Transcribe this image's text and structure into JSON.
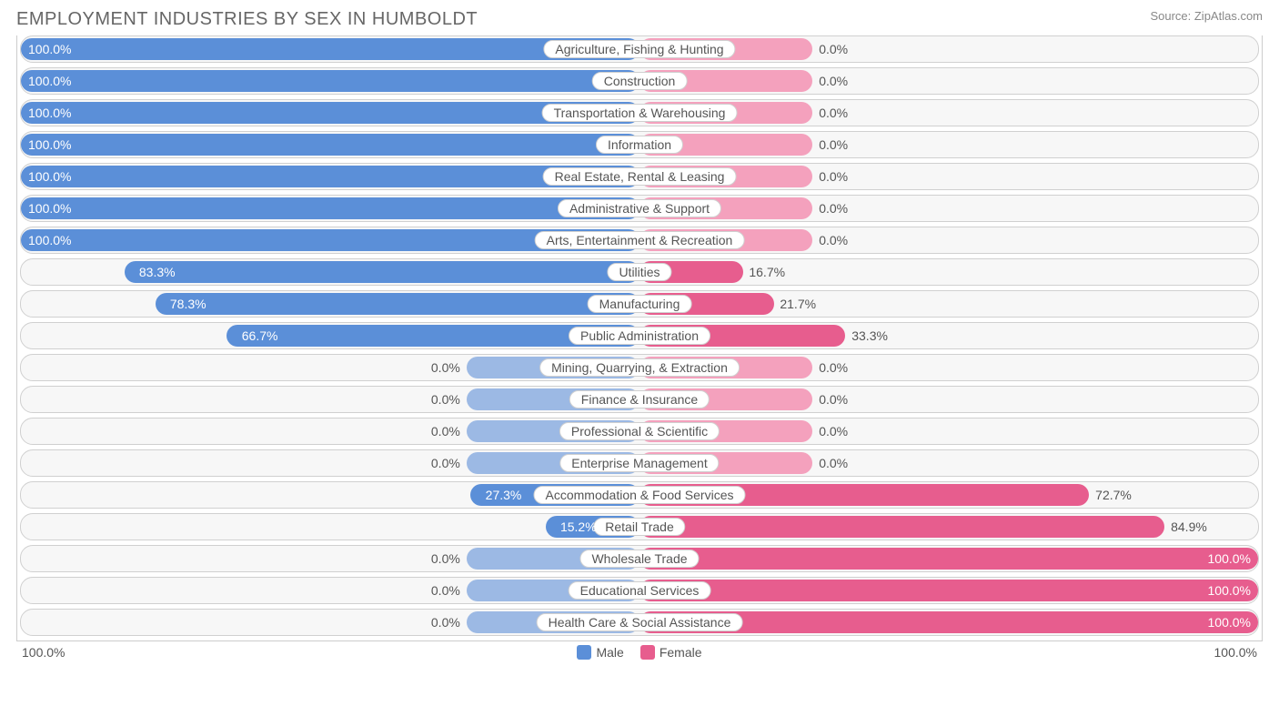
{
  "title": "EMPLOYMENT INDUSTRIES BY SEX IN HUMBOLDT",
  "source": "Source: ZipAtlas.com",
  "colors": {
    "male_full": "#5b8fd8",
    "male_light": "#9cb9e4",
    "female_full": "#e75d8e",
    "female_light": "#f4a1bd",
    "track_bg": "#f7f7f7",
    "track_border": "#d0d0d0",
    "text": "#555555"
  },
  "axis": {
    "left_label": "100.0%",
    "right_label": "100.0%",
    "half_width_pct": 50
  },
  "legend": [
    {
      "label": "Male",
      "color": "#5b8fd8"
    },
    {
      "label": "Female",
      "color": "#e75d8e"
    }
  ],
  "default_bar_pct": 28,
  "rows": [
    {
      "category": "Agriculture, Fishing & Hunting",
      "male": 100.0,
      "female": 0.0,
      "male_label": "100.0%",
      "female_label": "0.0%"
    },
    {
      "category": "Construction",
      "male": 100.0,
      "female": 0.0,
      "male_label": "100.0%",
      "female_label": "0.0%"
    },
    {
      "category": "Transportation & Warehousing",
      "male": 100.0,
      "female": 0.0,
      "male_label": "100.0%",
      "female_label": "0.0%"
    },
    {
      "category": "Information",
      "male": 100.0,
      "female": 0.0,
      "male_label": "100.0%",
      "female_label": "0.0%"
    },
    {
      "category": "Real Estate, Rental & Leasing",
      "male": 100.0,
      "female": 0.0,
      "male_label": "100.0%",
      "female_label": "0.0%"
    },
    {
      "category": "Administrative & Support",
      "male": 100.0,
      "female": 0.0,
      "male_label": "100.0%",
      "female_label": "0.0%"
    },
    {
      "category": "Arts, Entertainment & Recreation",
      "male": 100.0,
      "female": 0.0,
      "male_label": "100.0%",
      "female_label": "0.0%"
    },
    {
      "category": "Utilities",
      "male": 83.3,
      "female": 16.7,
      "male_label": "83.3%",
      "female_label": "16.7%"
    },
    {
      "category": "Manufacturing",
      "male": 78.3,
      "female": 21.7,
      "male_label": "78.3%",
      "female_label": "21.7%"
    },
    {
      "category": "Public Administration",
      "male": 66.7,
      "female": 33.3,
      "male_label": "66.7%",
      "female_label": "33.3%"
    },
    {
      "category": "Mining, Quarrying, & Extraction",
      "male": 0.0,
      "female": 0.0,
      "male_label": "0.0%",
      "female_label": "0.0%"
    },
    {
      "category": "Finance & Insurance",
      "male": 0.0,
      "female": 0.0,
      "male_label": "0.0%",
      "female_label": "0.0%"
    },
    {
      "category": "Professional & Scientific",
      "male": 0.0,
      "female": 0.0,
      "male_label": "0.0%",
      "female_label": "0.0%"
    },
    {
      "category": "Enterprise Management",
      "male": 0.0,
      "female": 0.0,
      "male_label": "0.0%",
      "female_label": "0.0%"
    },
    {
      "category": "Accommodation & Food Services",
      "male": 27.3,
      "female": 72.7,
      "male_label": "27.3%",
      "female_label": "72.7%"
    },
    {
      "category": "Retail Trade",
      "male": 15.2,
      "female": 84.9,
      "male_label": "15.2%",
      "female_label": "84.9%"
    },
    {
      "category": "Wholesale Trade",
      "male": 0.0,
      "female": 100.0,
      "male_label": "0.0%",
      "female_label": "100.0%"
    },
    {
      "category": "Educational Services",
      "male": 0.0,
      "female": 100.0,
      "male_label": "0.0%",
      "female_label": "100.0%"
    },
    {
      "category": "Health Care & Social Assistance",
      "male": 0.0,
      "female": 100.0,
      "male_label": "0.0%",
      "female_label": "100.0%"
    }
  ]
}
